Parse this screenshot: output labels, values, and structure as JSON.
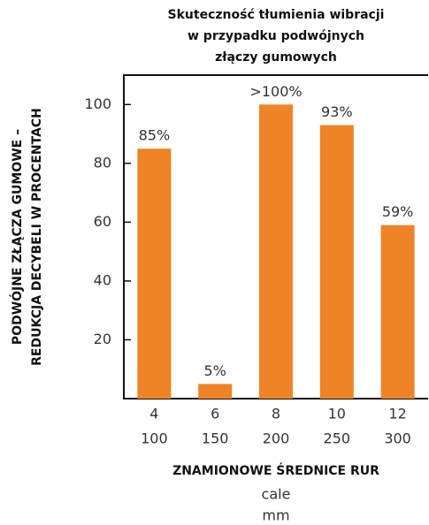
{
  "chart_data": {
    "type": "bar",
    "title": [
      "Skuteczność tłumienia wibracji",
      "w przypadku podwójnych",
      "złączy gumowych"
    ],
    "ylabel": [
      "PODWÓJNE ZŁĄCZA GUMOWE –",
      "REDUKCJA DECYBELI W PROCENTACH"
    ],
    "xlabel": "ZNAMIONOWE ŚREDNICE RUR",
    "xunits": [
      "cale",
      "mm"
    ],
    "categories": [
      "4",
      "6",
      "8",
      "10",
      "12"
    ],
    "categories_mm": [
      "100",
      "150",
      "200",
      "250",
      "300"
    ],
    "values": [
      85,
      5,
      100,
      93,
      59
    ],
    "value_labels": [
      "85%",
      "5%",
      ">100%",
      "93%",
      "59%"
    ],
    "color": "#ee8427",
    "ylim": [
      0,
      110
    ],
    "yticks": [
      20,
      40,
      60,
      80,
      100
    ]
  }
}
